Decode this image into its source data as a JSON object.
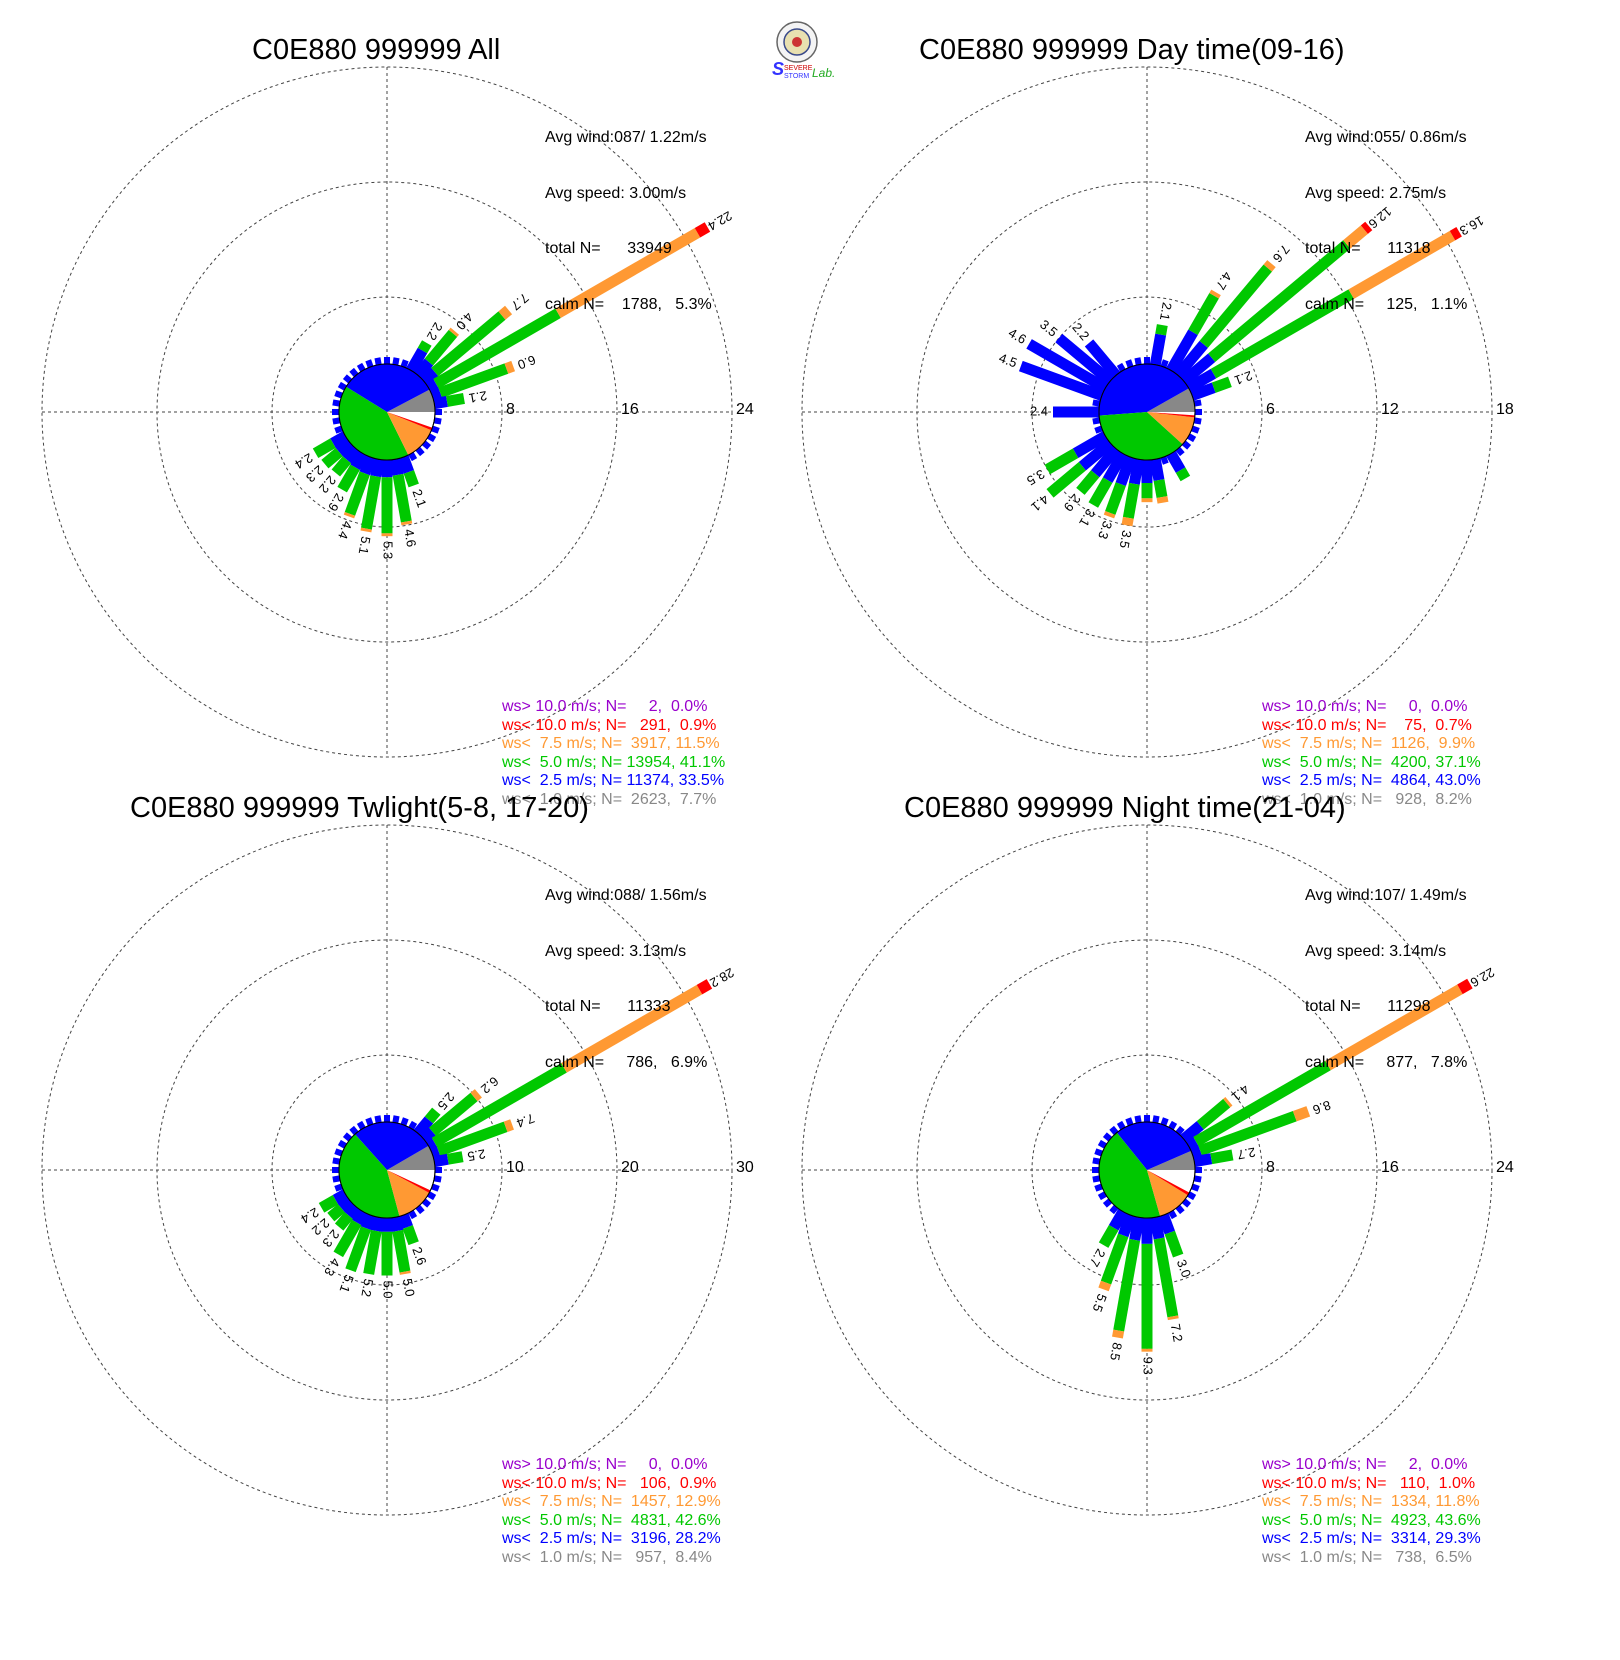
{
  "colors": {
    "calm_gray": "#888888",
    "lt2_5": "#0000ff",
    "lt5_0": "#00c800",
    "lt7_5": "#ff9933",
    "lt10_0": "#ff0000",
    "gt10_0": "#9900cc"
  },
  "logo": {
    "text_severe": "SEVERE",
    "text_storm": "STORM",
    "text_lab": "Lab."
  },
  "chart_data": [
    {
      "type": "windrose",
      "title": "C0E880 999999 All",
      "rings": [
        8,
        16,
        24
      ],
      "ring_labels": [
        "8",
        "16",
        "24"
      ],
      "stats": [
        "Avg wind:087/ 1.22m/s",
        "Avg speed: 3.00m/s",
        "total N=      33949",
        "calm N=    1788,   5.3%"
      ],
      "legend": [
        {
          "text": "ws> 10.0 m/s; N=     2,  0.0%",
          "color": "#9900cc"
        },
        {
          "text": "ws< 10.0 m/s; N=   291,  0.9%",
          "color": "#ff0000"
        },
        {
          "text": "ws<  7.5 m/s; N=  3917, 11.5%",
          "color": "#ff9933"
        },
        {
          "text": "ws<  5.0 m/s; N= 13954, 41.1%",
          "color": "#00c800"
        },
        {
          "text": "ws<  2.5 m/s; N= 11374, 33.5%",
          "color": "#0000ff"
        },
        {
          "text": "ws<  1.0 m/s; N=  2623,  7.7%",
          "color": "#888888"
        }
      ],
      "pie": [
        7.7,
        33.5,
        41.1,
        11.5,
        0.9,
        0.0
      ],
      "dirs": [
        {
          "deg": 30,
          "values": [
            1.6,
            0.6,
            0
          ],
          "label": "2.2"
        },
        {
          "deg": 40,
          "values": [
            1.2,
            2.6,
            0.2
          ],
          "label": "4.0"
        },
        {
          "deg": 50,
          "values": [
            1.0,
            6.1,
            0.6
          ],
          "label": "7.7"
        },
        {
          "deg": 60,
          "values": [
            0.6,
            9.8,
            11.2,
            0.8
          ],
          "label": "22.4"
        },
        {
          "deg": 70,
          "values": [
            0.6,
            4.9,
            0.5
          ],
          "label": "6.0"
        },
        {
          "deg": 80,
          "values": [
            0.9,
            1.2
          ],
          "label": "2.1"
        },
        {
          "deg": 160,
          "values": [
            1.1,
            1.0
          ],
          "label": "2.1"
        },
        {
          "deg": 170,
          "values": [
            1.1,
            3.3,
            0.2
          ],
          "label": "4.6"
        },
        {
          "deg": 180,
          "values": [
            1.2,
            3.9,
            0.2
          ],
          "label": "5.3"
        },
        {
          "deg": 190,
          "values": [
            1.2,
            3.7,
            0.2
          ],
          "label": "5.1"
        },
        {
          "deg": 200,
          "values": [
            1.2,
            3.0,
            0.2
          ],
          "label": "4.4"
        },
        {
          "deg": 210,
          "values": [
            1.1,
            1.8
          ],
          "label": "2.9"
        },
        {
          "deg": 220,
          "values": [
            1.0,
            1.2
          ],
          "label": "2.2"
        },
        {
          "deg": 230,
          "values": [
            1.0,
            1.3
          ],
          "label": "2.3"
        },
        {
          "deg": 240,
          "values": [
            1.0,
            1.4
          ],
          "label": "2.4"
        }
      ]
    },
    {
      "type": "windrose",
      "title": "C0E880 999999 Day time(09-16)",
      "rings": [
        6,
        12,
        18
      ],
      "ring_labels": [
        "6",
        "12",
        "18"
      ],
      "stats": [
        "Avg wind:055/ 0.86m/s",
        "Avg speed: 2.75m/s",
        "total N=      11318",
        "calm N=     125,   1.1%"
      ],
      "legend": [
        {
          "text": "ws> 10.0 m/s; N=     0,  0.0%",
          "color": "#9900cc"
        },
        {
          "text": "ws< 10.0 m/s; N=    75,  0.7%",
          "color": "#ff0000"
        },
        {
          "text": "ws<  7.5 m/s; N=  1126,  9.9%",
          "color": "#ff9933"
        },
        {
          "text": "ws<  5.0 m/s; N=  4200, 37.1%",
          "color": "#00c800"
        },
        {
          "text": "ws<  2.5 m/s; N=  4864, 43.0%",
          "color": "#0000ff"
        },
        {
          "text": "ws<  1.0 m/s; N=   928,  8.2%",
          "color": "#888888"
        }
      ],
      "pie": [
        8.2,
        43.0,
        37.1,
        9.9,
        0.7,
        0.0
      ],
      "dirs": [
        {
          "deg": 10,
          "values": [
            1.6,
            0.5
          ],
          "label": "2.1"
        },
        {
          "deg": 30,
          "values": [
            2.3,
            2.2,
            0.2
          ],
          "label": "4.7"
        },
        {
          "deg": 40,
          "values": [
            2.1,
            5.2,
            0.3
          ],
          "label": "7.6"
        },
        {
          "deg": 50,
          "values": [
            1.9,
            9.2,
            1.2,
            0.3
          ],
          "label": "12.6"
        },
        {
          "deg": 60,
          "values": [
            1.5,
            8.3,
            6.1,
            0.4
          ],
          "label": "16.3"
        },
        {
          "deg": 70,
          "values": [
            1.2,
            0.9
          ],
          "label": "2.1"
        },
        {
          "deg": 150,
          "values": [
            1.0,
            0.5
          ]
        },
        {
          "deg": 170,
          "values": [
            1.1,
            0.9,
            0.3
          ]
        },
        {
          "deg": 180,
          "values": [
            1.2,
            0.8,
            0.2
          ]
        },
        {
          "deg": 190,
          "values": [
            1.3,
            1.8,
            0.4
          ],
          "label": "3.5"
        },
        {
          "deg": 200,
          "values": [
            1.5,
            1.6,
            0.2
          ],
          "label": "3.3"
        },
        {
          "deg": 210,
          "values": [
            1.6,
            1.5
          ],
          "label": "3.1"
        },
        {
          "deg": 220,
          "values": [
            1.7,
            1.2
          ],
          "label": "2.9"
        },
        {
          "deg": 230,
          "values": [
            1.9,
            2.2
          ],
          "label": "4.1"
        },
        {
          "deg": 240,
          "values": [
            1.8,
            1.7
          ],
          "label": "3.5"
        },
        {
          "deg": 270,
          "values": [
            2.4
          ],
          "label": "2.4"
        },
        {
          "deg": 290,
          "values": [
            4.5
          ],
          "label": "4.5"
        },
        {
          "deg": 300,
          "values": [
            4.6
          ],
          "label": "4.6"
        },
        {
          "deg": 310,
          "values": [
            3.5
          ],
          "label": "3.5"
        },
        {
          "deg": 320,
          "values": [
            2.2
          ],
          "label": "2.2"
        }
      ]
    },
    {
      "type": "windrose",
      "title": "C0E880 999999 Twlight(5-8, 17-20)",
      "rings": [
        10,
        20,
        30
      ],
      "ring_labels": [
        "10",
        "20",
        "30"
      ],
      "stats": [
        "Avg wind:088/ 1.56m/s",
        "Avg speed: 3.13m/s",
        "total N=      11333",
        "calm N=     786,   6.9%"
      ],
      "legend": [
        {
          "text": "ws> 10.0 m/s; N=     0,  0.0%",
          "color": "#9900cc"
        },
        {
          "text": "ws< 10.0 m/s; N=   106,  0.9%",
          "color": "#ff0000"
        },
        {
          "text": "ws<  7.5 m/s; N=  1457, 12.9%",
          "color": "#ff9933"
        },
        {
          "text": "ws<  5.0 m/s; N=  4831, 42.6%",
          "color": "#00c800"
        },
        {
          "text": "ws<  2.5 m/s; N=  3196, 28.2%",
          "color": "#0000ff"
        },
        {
          "text": "ws<  1.0 m/s; N=   957,  8.4%",
          "color": "#888888"
        }
      ],
      "pie": [
        8.4,
        28.2,
        42.6,
        12.9,
        0.9,
        0.0
      ],
      "dirs": [
        {
          "deg": 40,
          "values": [
            1.5,
            1.0
          ],
          "label": "2.5"
        },
        {
          "deg": 50,
          "values": [
            1.0,
            4.7,
            0.5
          ],
          "label": "6.2"
        },
        {
          "deg": 60,
          "values": [
            0.6,
            13.0,
            13.6,
            1.0
          ],
          "label": "28.2"
        },
        {
          "deg": 70,
          "values": [
            0.6,
            6.2,
            0.6
          ],
          "label": "7.4"
        },
        {
          "deg": 80,
          "values": [
            1.2,
            1.3
          ],
          "label": "2.5"
        },
        {
          "deg": 160,
          "values": [
            1.1,
            1.5
          ],
          "label": "2.6"
        },
        {
          "deg": 170,
          "values": [
            1.2,
            3.6,
            0.2
          ],
          "label": "5.0"
        },
        {
          "deg": 180,
          "values": [
            1.2,
            3.8
          ],
          "label": "5.0"
        },
        {
          "deg": 190,
          "values": [
            1.2,
            3.8
          ],
          "label": "5.2"
        },
        {
          "deg": 200,
          "values": [
            1.2,
            3.9
          ],
          "label": "5.1"
        },
        {
          "deg": 210,
          "values": [
            1.1,
            3.2
          ],
          "label": "4.3"
        },
        {
          "deg": 220,
          "values": [
            1.0,
            1.3
          ],
          "label": "2.3"
        },
        {
          "deg": 230,
          "values": [
            1.0,
            1.2
          ],
          "label": "2.2"
        },
        {
          "deg": 240,
          "values": [
            1.0,
            1.4
          ],
          "label": "2.4"
        }
      ]
    },
    {
      "type": "windrose",
      "title": "C0E880 999999 Night time(21-04)",
      "rings": [
        8,
        16,
        24
      ],
      "ring_labels": [
        "8",
        "16",
        "24"
      ],
      "stats": [
        "Avg wind:107/ 1.49m/s",
        "Avg speed: 3.14m/s",
        "total N=      11298",
        "calm N=     877,   7.8%"
      ],
      "legend": [
        {
          "text": "ws> 10.0 m/s; N=     2,  0.0%",
          "color": "#9900cc"
        },
        {
          "text": "ws< 10.0 m/s; N=   110,  1.0%",
          "color": "#ff0000"
        },
        {
          "text": "ws<  7.5 m/s; N=  1334, 11.8%",
          "color": "#ff9933"
        },
        {
          "text": "ws<  5.0 m/s; N=  4923, 43.6%",
          "color": "#00c800"
        },
        {
          "text": "ws<  2.5 m/s; N=  3314, 29.3%",
          "color": "#0000ff"
        },
        {
          "text": "ws<  1.0 m/s; N=   738,  6.5%",
          "color": "#888888"
        }
      ],
      "pie": [
        6.5,
        29.3,
        43.6,
        11.8,
        1.0,
        0.0
      ],
      "dirs": [
        {
          "deg": 50,
          "values": [
            1.5,
            2.4,
            0.2
          ],
          "label": "4.1"
        },
        {
          "deg": 60,
          "values": [
            0.6,
            10.6,
            10.6,
            0.8
          ],
          "label": "22.6"
        },
        {
          "deg": 70,
          "values": [
            0.6,
            7.0,
            1.0
          ],
          "label": "8.6"
        },
        {
          "deg": 80,
          "values": [
            1.2,
            1.5
          ],
          "label": "2.7"
        },
        {
          "deg": 160,
          "values": [
            1.3,
            1.7
          ],
          "label": "3.0"
        },
        {
          "deg": 170,
          "values": [
            1.5,
            5.5,
            0.2
          ],
          "label": "7.2"
        },
        {
          "deg": 180,
          "values": [
            1.8,
            7.3,
            0.2
          ],
          "label": "9.3"
        },
        {
          "deg": 190,
          "values": [
            1.6,
            6.4,
            0.5
          ],
          "label": "8.5"
        },
        {
          "deg": 200,
          "values": [
            1.5,
            3.5,
            0.5
          ],
          "label": "5.5"
        },
        {
          "deg": 210,
          "values": [
            1.3,
            1.4
          ],
          "label": "2.7"
        }
      ]
    }
  ]
}
